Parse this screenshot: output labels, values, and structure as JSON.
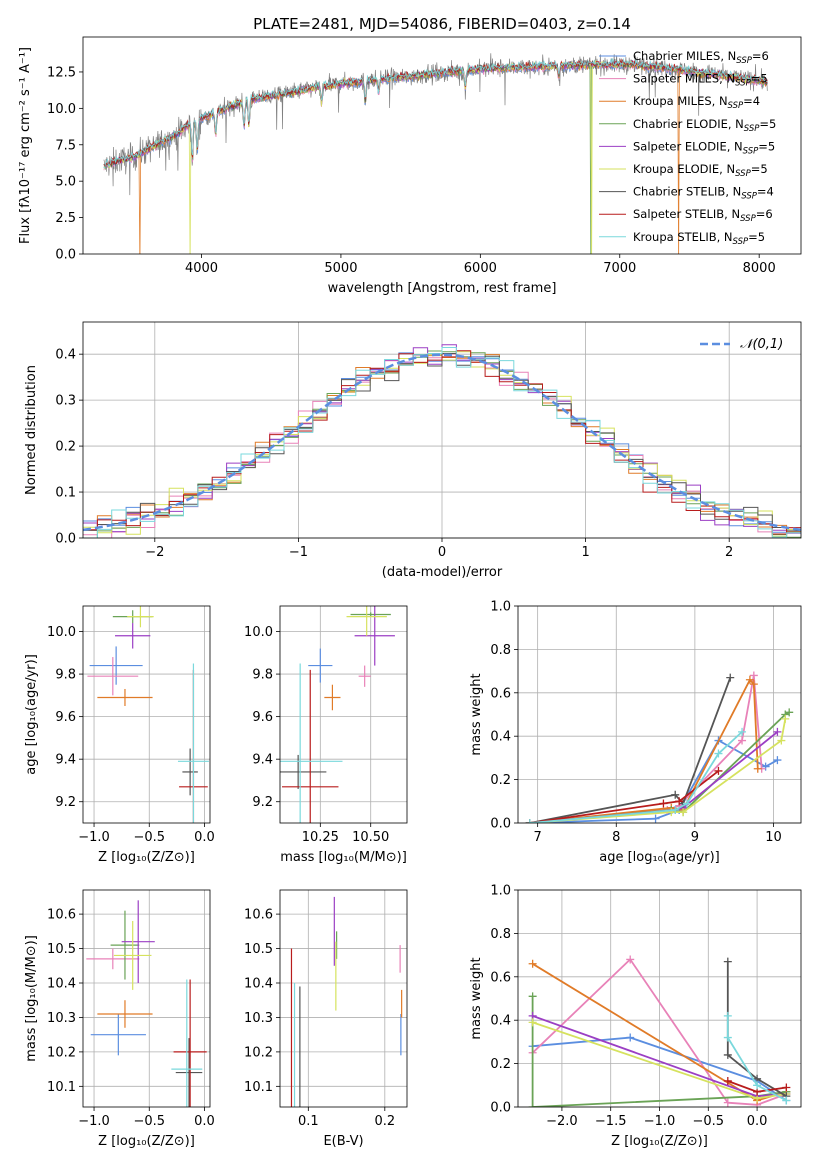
{
  "title": "PLATE=2481, MJD=54086, FIBERID=0403, z=0.14",
  "colors": {
    "chabrier_miles": "#5b8ee0",
    "salpeter_miles": "#e882b8",
    "kroupa_miles": "#e07b28",
    "chabrier_elodie": "#6aa356",
    "salpeter_elodie": "#9b3fc4",
    "kroupa_elodie": "#d6e25e",
    "chabrier_stelib": "#555555",
    "salpeter_stelib": "#b81c1c",
    "kroupa_stelib": "#7ad8dc",
    "data": "#808080"
  },
  "legend_spectrum": [
    {
      "name": "Chabrier MILES",
      "n": "6",
      "color": "#5b8ee0"
    },
    {
      "name": "Salpeter MILES",
      "n": "5",
      "color": "#e882b8"
    },
    {
      "name": "Kroupa MILES",
      "n": "4",
      "color": "#e07b28"
    },
    {
      "name": "Chabrier ELODIE",
      "n": "5",
      "color": "#6aa356"
    },
    {
      "name": "Salpeter ELODIE",
      "n": "5",
      "color": "#9b3fc4"
    },
    {
      "name": "Kroupa ELODIE",
      "n": "5",
      "color": "#d6e25e"
    },
    {
      "name": "Chabrier STELIB",
      "n": "4",
      "color": "#555555"
    },
    {
      "name": "Salpeter STELIB",
      "n": "6",
      "color": "#b81c1c"
    },
    {
      "name": "Kroupa STELIB",
      "n": "5",
      "color": "#7ad8dc"
    }
  ],
  "chart_data": [
    {
      "id": "spectrum",
      "type": "line",
      "xlabel": "wavelength [Angstrom, rest frame]",
      "ylabel": "Flux [fλ10⁻¹⁷ erg cm⁻² s⁻¹ A⁻¹]",
      "xlim": [
        3150,
        8300
      ],
      "ylim": [
        0,
        14.9
      ],
      "xticks": [
        4000,
        5000,
        6000,
        7000,
        8000
      ],
      "yticks": [
        0.0,
        2.5,
        5.0,
        7.5,
        10.0,
        12.5
      ],
      "ytick_labels": [
        "0.0",
        "2.5",
        "5.0",
        "7.5",
        "10.0",
        "12.5"
      ],
      "continuum_points": [
        [
          3300,
          6.0
        ],
        [
          3400,
          6.4
        ],
        [
          3500,
          6.6
        ],
        [
          3600,
          7.1
        ],
        [
          3700,
          7.6
        ],
        [
          3800,
          8.1
        ],
        [
          3900,
          8.8
        ],
        [
          4000,
          9.3
        ],
        [
          4100,
          9.7
        ],
        [
          4200,
          10.1
        ],
        [
          4400,
          10.7
        ],
        [
          4600,
          11.0
        ],
        [
          4800,
          11.4
        ],
        [
          5000,
          11.7
        ],
        [
          5200,
          11.9
        ],
        [
          5400,
          12.1
        ],
        [
          5600,
          12.3
        ],
        [
          5800,
          12.5
        ],
        [
          6000,
          12.7
        ],
        [
          6200,
          12.8
        ],
        [
          6500,
          12.9
        ],
        [
          6800,
          13.0
        ],
        [
          7100,
          13.0
        ],
        [
          7400,
          12.7
        ],
        [
          7700,
          12.3
        ],
        [
          8000,
          11.9
        ],
        [
          8050,
          11.8
        ]
      ]
    },
    {
      "id": "residuals",
      "type": "histogram",
      "xlabel": "(data-model)/error",
      "ylabel": "Normed distribution",
      "xlim": [
        -2.5,
        2.5
      ],
      "ylim": [
        0,
        0.47
      ],
      "xticks": [
        -2,
        -1,
        0,
        1,
        2
      ],
      "xtick_labels": [
        "−2",
        "−1",
        "0",
        "1",
        "2"
      ],
      "yticks": [
        0.0,
        0.1,
        0.2,
        0.3,
        0.4
      ],
      "ytick_labels": [
        "0.0",
        "0.1",
        "0.2",
        "0.3",
        "0.4"
      ],
      "bin_width": 0.1,
      "legend": "𝒩(0,1)"
    },
    {
      "id": "age_vs_Z",
      "type": "errorbar",
      "xlabel": "Z [log₁₀(Z/Z⊙)]",
      "ylabel": "age  [log₁₀(age/yr)]",
      "xlim": [
        -1.1,
        0.05
      ],
      "ylim": [
        9.1,
        10.12
      ],
      "xticks": [
        -1.0,
        -0.5,
        0.0
      ],
      "xtick_labels": [
        "−1.0",
        "−0.5",
        "0.0"
      ],
      "yticks": [
        9.2,
        9.4,
        9.6,
        9.8,
        10.0
      ],
      "ytick_labels": [
        "9.2",
        "9.4",
        "9.6",
        "9.8",
        "10.0"
      ],
      "points": [
        {
          "series": "Chabrier MILES",
          "x": -0.8,
          "xerr": 0.24,
          "y": 9.84,
          "yerr": 0.09
        },
        {
          "series": "Salpeter MILES",
          "x": -0.83,
          "xerr": 0.23,
          "y": 9.79,
          "yerr": 0.09
        },
        {
          "series": "Kroupa MILES",
          "x": -0.72,
          "xerr": 0.25,
          "y": 9.69,
          "yerr": 0.04
        },
        {
          "series": "Chabrier ELODIE",
          "x": -0.65,
          "xerr": 0.18,
          "y": 10.07,
          "yerr": 0.03
        },
        {
          "series": "Salpeter ELODIE",
          "x": -0.65,
          "xerr": 0.16,
          "y": 9.98,
          "yerr": 0.06
        },
        {
          "series": "Kroupa ELODIE",
          "x": -0.58,
          "xerr": 0.12,
          "y": 10.07,
          "yerr": 0.05
        },
        {
          "series": "Chabrier STELIB",
          "x": -0.13,
          "xerr": 0.07,
          "y": 9.34,
          "yerr": 0.11
        },
        {
          "series": "Salpeter STELIB",
          "x": -0.1,
          "xerr": 0.13,
          "y": 9.27,
          "yerr": 0.55
        },
        {
          "series": "Kroupa STELIB",
          "x": -0.1,
          "xerr": 0.14,
          "y": 9.39,
          "yerr": 0.46
        }
      ]
    },
    {
      "id": "age_vs_mass",
      "type": "errorbar",
      "xlabel": "mass [log₁₀(M/M⊙)]",
      "ylabel": "",
      "xlim": [
        10.05,
        10.68
      ],
      "ylim": [
        9.1,
        10.12
      ],
      "xticks": [
        10.25,
        10.5
      ],
      "xtick_labels": [
        "10.25",
        "10.50"
      ],
      "yticks": [
        9.2,
        9.4,
        9.6,
        9.8,
        10.0
      ],
      "ytick_labels": [
        "9.2",
        "9.4",
        "9.6",
        "9.8",
        "10.0"
      ],
      "points": [
        {
          "series": "Chabrier MILES",
          "x": 10.25,
          "xerr": 0.06,
          "y": 9.84,
          "yerr": 0.08
        },
        {
          "series": "Salpeter MILES",
          "x": 10.47,
          "xerr": 0.03,
          "y": 9.79,
          "yerr": 0.05
        },
        {
          "series": "Kroupa MILES",
          "x": 10.31,
          "xerr": 0.04,
          "y": 9.69,
          "yerr": 0.06
        },
        {
          "series": "Chabrier ELODIE",
          "x": 10.5,
          "xerr": 0.1,
          "y": 10.08,
          "yerr": 0.01
        },
        {
          "series": "Salpeter ELODIE",
          "x": 10.52,
          "xerr": 0.1,
          "y": 9.98,
          "yerr": 0.14
        },
        {
          "series": "Kroupa ELODIE",
          "x": 10.48,
          "xerr": 0.1,
          "y": 10.07,
          "yerr": 0.09
        },
        {
          "series": "Chabrier STELIB",
          "x": 10.14,
          "xerr": 0.14,
          "y": 9.34,
          "yerr": 0.08
        },
        {
          "series": "Salpeter STELIB",
          "x": 10.2,
          "xerr": 0.14,
          "y": 9.27,
          "yerr": 0.55
        },
        {
          "series": "Kroupa STELIB",
          "x": 10.15,
          "xerr": 0.21,
          "y": 9.39,
          "yerr": 0.46
        }
      ]
    },
    {
      "id": "weight_vs_age",
      "type": "line",
      "xlabel": "age  [log₁₀(age/yr)]",
      "ylabel": "mass weight",
      "xlim": [
        6.75,
        10.35
      ],
      "ylim": [
        0,
        1
      ],
      "xticks": [
        7,
        8,
        9,
        10
      ],
      "xtick_labels": [
        "7",
        "8",
        "9",
        "10"
      ],
      "yticks": [
        0,
        0.2,
        0.4,
        0.6,
        0.8,
        1.0
      ],
      "ytick_labels": [
        "0.0",
        "0.2",
        "0.4",
        "0.6",
        "0.8",
        "1.0"
      ],
      "series": [
        {
          "name": "Chabrier MILES",
          "x": [
            6.9,
            8.5,
            8.8,
            9.3,
            9.9,
            10.05
          ],
          "y": [
            0.0,
            0.02,
            0.06,
            0.38,
            0.26,
            0.29
          ]
        },
        {
          "name": "Salpeter MILES",
          "x": [
            6.9,
            8.65,
            8.8,
            9.6,
            9.75,
            9.85
          ],
          "y": [
            0.0,
            0.06,
            0.08,
            0.38,
            0.68,
            0.25
          ]
        },
        {
          "name": "Kroupa MILES",
          "x": [
            6.9,
            8.7,
            8.85,
            9.7,
            9.75,
            9.8
          ],
          "y": [
            0.0,
            0.07,
            0.06,
            0.66,
            0.64,
            0.25
          ]
        },
        {
          "name": "Chabrier ELODIE",
          "x": [
            6.9,
            8.7,
            8.85,
            10.15,
            10.2
          ],
          "y": [
            0.0,
            0.06,
            0.05,
            0.5,
            0.51
          ]
        },
        {
          "name": "Salpeter ELODIE",
          "x": [
            6.9,
            8.75,
            8.85,
            10.05
          ],
          "y": [
            0.0,
            0.06,
            0.07,
            0.42
          ]
        },
        {
          "name": "Kroupa ELODIE",
          "x": [
            6.9,
            8.7,
            8.85,
            10.1,
            10.15
          ],
          "y": [
            0.0,
            0.05,
            0.05,
            0.38,
            0.48
          ]
        },
        {
          "name": "Chabrier STELIB",
          "x": [
            6.9,
            8.75,
            8.85,
            9.45
          ],
          "y": [
            0.0,
            0.13,
            0.09,
            0.67
          ]
        },
        {
          "name": "Salpeter STELIB",
          "x": [
            6.9,
            8.6,
            8.8,
            9.3
          ],
          "y": [
            0.0,
            0.09,
            0.1,
            0.24
          ]
        },
        {
          "name": "Kroupa STELIB",
          "x": [
            6.9,
            8.75,
            8.9,
            9.3,
            9.6
          ],
          "y": [
            0.0,
            0.06,
            0.09,
            0.32,
            0.42
          ]
        }
      ]
    },
    {
      "id": "mass_vs_Z",
      "type": "errorbar",
      "xlabel": "Z [log₁₀(Z/Z⊙)]",
      "ylabel": "mass [log₁₀(M/M⊙)]",
      "xlim": [
        -1.1,
        0.05
      ],
      "ylim": [
        10.04,
        10.67
      ],
      "xticks": [
        -1.0,
        -0.5,
        0.0
      ],
      "xtick_labels": [
        "−1.0",
        "−0.5",
        "0.0"
      ],
      "yticks": [
        10.1,
        10.2,
        10.3,
        10.4,
        10.5,
        10.6
      ],
      "ytick_labels": [
        "10.1",
        "10.2",
        "10.3",
        "10.4",
        "10.5",
        "10.6"
      ],
      "points": [
        {
          "series": "Chabrier MILES",
          "x": -0.78,
          "xerr": 0.25,
          "y": 10.25,
          "yerr": 0.06
        },
        {
          "series": "Salpeter MILES",
          "x": -0.83,
          "xerr": 0.24,
          "y": 10.47,
          "yerr": 0.03
        },
        {
          "series": "Kroupa MILES",
          "x": -0.72,
          "xerr": 0.25,
          "y": 10.31,
          "yerr": 0.04
        },
        {
          "series": "Chabrier ELODIE",
          "x": -0.72,
          "xerr": 0.13,
          "y": 10.51,
          "yerr": 0.1
        },
        {
          "series": "Salpeter ELODIE",
          "x": -0.6,
          "xerr": 0.15,
          "y": 10.52,
          "yerr": 0.12
        },
        {
          "series": "Kroupa ELODIE",
          "x": -0.65,
          "xerr": 0.17,
          "y": 10.48,
          "yerr": 0.1
        },
        {
          "series": "Chabrier STELIB",
          "x": -0.14,
          "xerr": 0.12,
          "y": 10.14,
          "yerr": 0.1
        },
        {
          "series": "Salpeter STELIB",
          "x": -0.13,
          "xerr": 0.15,
          "y": 10.2,
          "yerr": 0.21
        },
        {
          "series": "Kroupa STELIB",
          "x": -0.16,
          "xerr": 0.14,
          "y": 10.15,
          "yerr": 0.26
        }
      ]
    },
    {
      "id": "mass_vs_ebv",
      "type": "errorbar",
      "xlabel": "E(B-V)",
      "ylabel": "",
      "xlim": [
        0.063,
        0.229
      ],
      "ylim": [
        10.04,
        10.67
      ],
      "xticks": [
        0.1,
        0.2
      ],
      "xtick_labels": [
        "0.1",
        "0.2"
      ],
      "yticks": [
        10.1,
        10.2,
        10.3,
        10.4,
        10.5,
        10.6
      ],
      "ytick_labels": [
        "10.1",
        "10.2",
        "10.3",
        "10.4",
        "10.5",
        "10.6"
      ],
      "points": [
        {
          "series": "Chabrier MILES",
          "x": 0.221,
          "xerr": 0.0,
          "y": 10.25,
          "yerr": 0.06
        },
        {
          "series": "Salpeter MILES",
          "x": 0.22,
          "xerr": 0.0,
          "y": 10.47,
          "yerr": 0.04
        },
        {
          "series": "Kroupa MILES",
          "x": 0.222,
          "xerr": 0.0,
          "y": 10.34,
          "yerr": 0.04
        },
        {
          "series": "Chabrier ELODIE",
          "x": 0.137,
          "xerr": 0.0,
          "y": 10.51,
          "yerr": 0.04
        },
        {
          "series": "Salpeter ELODIE",
          "x": 0.134,
          "xerr": 0.0,
          "y": 10.55,
          "yerr": 0.1
        },
        {
          "series": "Kroupa ELODIE",
          "x": 0.136,
          "xerr": 0.0,
          "y": 10.42,
          "yerr": 0.1
        },
        {
          "series": "Chabrier STELIB",
          "x": 0.089,
          "xerr": 0.0,
          "y": 10.14,
          "yerr": 0.25
        },
        {
          "series": "Salpeter STELIB",
          "x": 0.078,
          "xerr": 0.0,
          "y": 10.27,
          "yerr": 0.23
        },
        {
          "series": "Kroupa STELIB",
          "x": 0.082,
          "xerr": 0.0,
          "y": 10.2,
          "yerr": 0.2
        }
      ]
    },
    {
      "id": "weight_vs_Z",
      "type": "line",
      "xlabel": "Z [log₁₀(Z/Z⊙)]",
      "ylabel": "mass weight",
      "xlim": [
        -2.45,
        0.45
      ],
      "ylim": [
        0,
        1
      ],
      "xticks": [
        -2.0,
        -1.5,
        -1.0,
        -0.5,
        0.0
      ],
      "xtick_labels": [
        "−2.0",
        "−1.5",
        "−1.0",
        "−0.5",
        "0.0"
      ],
      "yticks": [
        0,
        0.2,
        0.4,
        0.6,
        0.8,
        1.0
      ],
      "ytick_labels": [
        "0.0",
        "0.2",
        "0.4",
        "0.6",
        "0.8",
        "1.0"
      ],
      "series": [
        {
          "name": "Chabrier MILES",
          "x": [
            -2.3,
            -1.3,
            0.0,
            0.3
          ],
          "y": [
            0.28,
            0.32,
            0.12,
            0.03
          ]
        },
        {
          "name": "Salpeter MILES",
          "x": [
            -2.3,
            -1.3,
            -0.3,
            0.0,
            0.3
          ],
          "y": [
            0.25,
            0.68,
            0.02,
            0.01,
            0.06
          ]
        },
        {
          "name": "Kroupa MILES",
          "x": [
            -2.3,
            0.0,
            0.3
          ],
          "y": [
            0.66,
            0.03,
            0.07
          ]
        },
        {
          "name": "Chabrier ELODIE",
          "x": [
            -2.3,
            -2.3,
            0.0,
            0.3
          ],
          "y": [
            0.51,
            0.0,
            0.05,
            0.07
          ]
        },
        {
          "name": "Salpeter ELODIE",
          "x": [
            -2.3,
            0.0,
            0.3
          ],
          "y": [
            0.42,
            0.05,
            0.06
          ]
        },
        {
          "name": "Kroupa ELODIE",
          "x": [
            -2.3,
            0.0,
            0.3
          ],
          "y": [
            0.39,
            0.04,
            0.06
          ]
        },
        {
          "name": "Chabrier STELIB",
          "x": [
            -0.3,
            -0.3,
            0.0,
            0.3
          ],
          "y": [
            0.67,
            0.24,
            0.13,
            0.05
          ]
        },
        {
          "name": "Salpeter STELIB",
          "x": [
            -0.3,
            0.0,
            0.3
          ],
          "y": [
            0.12,
            0.07,
            0.09
          ]
        },
        {
          "name": "Kroupa STELIB",
          "x": [
            -0.3,
            -0.3,
            0.0,
            0.3
          ],
          "y": [
            0.42,
            0.32,
            0.1,
            0.03
          ]
        }
      ]
    }
  ]
}
